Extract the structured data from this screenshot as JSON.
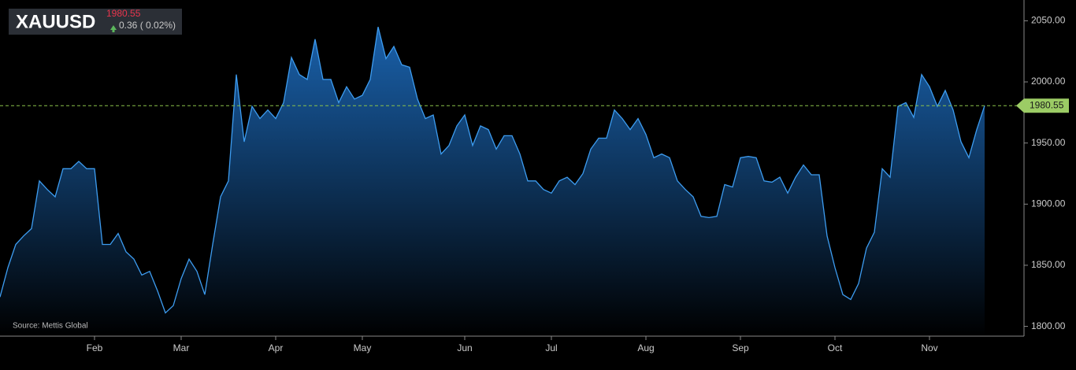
{
  "symbol": "XAUUSD",
  "change": "0.36 ( 0.02%)",
  "source": "Source: Mettis Global",
  "chart_data": {
    "type": "area",
    "categories": [
      null,
      null,
      null,
      null,
      null,
      null,
      null,
      null,
      null,
      null,
      null,
      null,
      "Feb",
      null,
      null,
      null,
      null,
      null,
      null,
      null,
      null,
      null,
      null,
      "Mar",
      null,
      null,
      null,
      null,
      null,
      null,
      null,
      null,
      null,
      null,
      null,
      "Apr",
      null,
      null,
      null,
      null,
      null,
      null,
      null,
      null,
      null,
      null,
      "May",
      null,
      null,
      null,
      null,
      null,
      null,
      null,
      null,
      null,
      null,
      null,
      null,
      "Jun",
      null,
      null,
      null,
      null,
      null,
      null,
      null,
      null,
      null,
      null,
      "Jul",
      null,
      null,
      null,
      null,
      null,
      null,
      null,
      null,
      null,
      null,
      null,
      "Aug",
      null,
      null,
      null,
      null,
      null,
      null,
      null,
      null,
      null,
      null,
      null,
      "Sep",
      null,
      null,
      null,
      null,
      null,
      null,
      null,
      null,
      null,
      null,
      null,
      "Oct",
      null,
      null,
      null,
      null,
      null,
      null,
      null,
      null,
      null,
      null,
      null,
      "Nov",
      null,
      null,
      null,
      null,
      null,
      null,
      null
    ],
    "values": [
      1824,
      1848,
      1867,
      1874,
      1880,
      1919,
      1912,
      1906,
      1929,
      1929,
      1935,
      1929,
      1929,
      1867,
      1867,
      1876,
      1861,
      1855,
      1842,
      1845,
      1829,
      1811,
      1817,
      1839,
      1855,
      1845,
      1826,
      1867,
      1906,
      1919,
      2006,
      1951,
      1980,
      1970,
      1977,
      1970,
      1983,
      2020,
      2006,
      2002,
      2035,
      2002,
      2002,
      1983,
      1996,
      1986,
      1989,
      2002,
      2045,
      2019,
      2029,
      2014,
      2012,
      1986,
      1970,
      1973,
      1941,
      1948,
      1964,
      1973,
      1948,
      1964,
      1961,
      1945,
      1956,
      1956,
      1941,
      1919,
      1919,
      1912,
      1909,
      1919,
      1922,
      1916,
      1925,
      1945,
      1954,
      1954,
      1977,
      1970,
      1961,
      1970,
      1957,
      1938,
      1941,
      1938,
      1919,
      1912,
      1906,
      1890,
      1889,
      1890,
      1916,
      1914,
      1938,
      1939,
      1938,
      1919,
      1918,
      1922,
      1909,
      1922,
      1932,
      1924,
      1924,
      1874,
      1848,
      1826,
      1822,
      1835,
      1864,
      1877,
      1929,
      1922,
      1980,
      1983,
      1971,
      2006,
      1996,
      1980,
      1993,
      1977,
      1951,
      1938,
      1961,
      1980.55
    ],
    "color": "#3d9cf0",
    "ylim": [
      1792,
      2067
    ],
    "yticks": [
      {
        "value": 1800,
        "label": "1800.00"
      },
      {
        "value": 1850,
        "label": "1850.00"
      },
      {
        "value": 1900,
        "label": "1900.00"
      },
      {
        "value": 1950,
        "label": "1950.00"
      },
      {
        "value": 2000,
        "label": "2000.00"
      },
      {
        "value": 2050,
        "label": "2050.00"
      }
    ],
    "grid": false
  }
}
